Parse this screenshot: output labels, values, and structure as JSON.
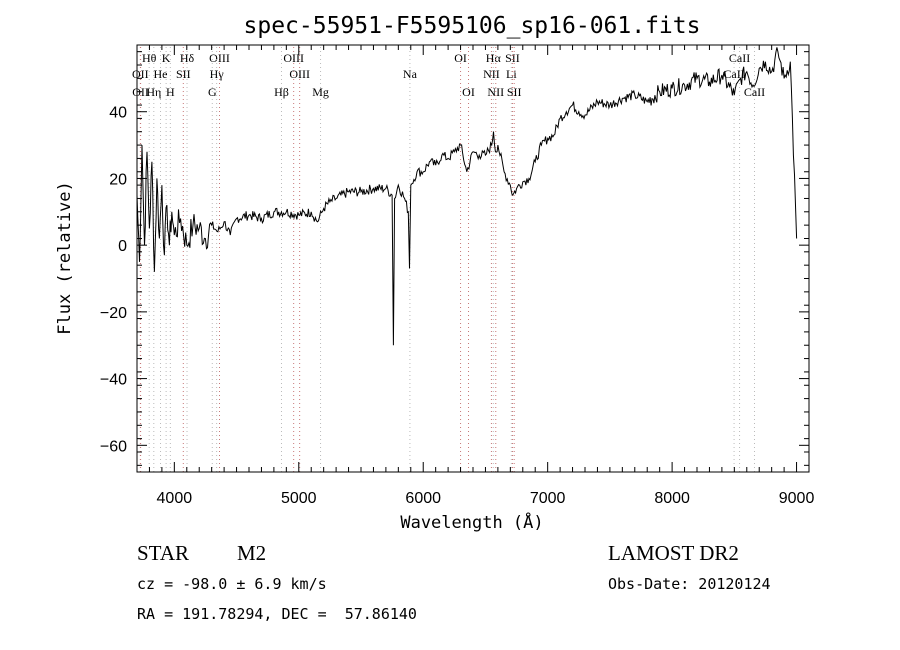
{
  "chart_data": {
    "type": "line",
    "title": "spec-55951-F5595106_sp16-061.fits",
    "xlabel": "Wavelength (Å)",
    "ylabel": "Flux (relative)",
    "xlim": [
      3700,
      9100
    ],
    "ylim": [
      -68,
      60
    ],
    "xticks": [
      4000,
      5000,
      6000,
      7000,
      8000,
      9000
    ],
    "yticks": [
      -60,
      -40,
      -20,
      0,
      20,
      40
    ],
    "grid": false,
    "series": [
      {
        "x": [
          3700,
          3720,
          3740,
          3760,
          3780,
          3800,
          3820,
          3840,
          3860,
          3880,
          3900,
          3920,
          3940,
          3960,
          3980,
          4000,
          4050,
          4100,
          4150,
          4200,
          4250,
          4300,
          4350,
          4400,
          4450,
          4500,
          4600,
          4700,
          4800,
          4900,
          5000,
          5100,
          5150,
          5200,
          5250,
          5300,
          5400,
          5500,
          5600,
          5700,
          5750,
          5760,
          5770,
          5800,
          5850,
          5880,
          5890,
          5900,
          5950,
          6000,
          6050,
          6100,
          6150,
          6200,
          6250,
          6300,
          6350,
          6400,
          6450,
          6500,
          6550,
          6565,
          6580,
          6600,
          6650,
          6700,
          6720,
          6750,
          6800,
          6850,
          6900,
          6950,
          7000,
          7050,
          7100,
          7150,
          7200,
          7250,
          7300,
          7400,
          7500,
          7600,
          7700,
          7800,
          7900,
          8000,
          8100,
          8200,
          8300,
          8400,
          8500,
          8550,
          8600,
          8650,
          8700,
          8750,
          8800,
          8850,
          8900,
          8950,
          9000
        ],
        "y": [
          15,
          -5,
          30,
          0,
          28,
          5,
          25,
          -8,
          20,
          2,
          18,
          -3,
          12,
          0,
          10,
          3,
          8,
          0,
          6,
          5,
          2,
          6,
          4,
          7,
          3,
          8,
          9,
          8,
          10,
          10,
          9,
          10,
          7,
          11,
          13,
          14,
          16,
          16,
          17,
          17,
          15,
          -30,
          14,
          18,
          14,
          10,
          -7,
          18,
          22,
          22,
          25,
          24,
          27,
          26,
          28,
          30,
          22,
          28,
          27,
          27,
          30,
          34,
          28,
          30,
          22,
          18,
          15,
          17,
          19,
          20,
          25,
          30,
          32,
          33,
          38,
          40,
          42,
          40,
          39,
          43,
          42,
          44,
          45,
          43,
          46,
          47,
          48,
          50,
          49,
          51,
          45,
          50,
          52,
          48,
          53,
          55,
          52,
          58,
          50,
          55,
          2
        ]
      }
    ],
    "spectral_lines": [
      {
        "label": "Hθ",
        "x": 3798,
        "row": 1,
        "color": "#bbbbbb"
      },
      {
        "label": "K",
        "x": 3934,
        "row": 1,
        "color": "#bbbbbb"
      },
      {
        "label": "Hδ",
        "x": 4102,
        "row": 1,
        "color": "#bbbbbb"
      },
      {
        "label": "OIII",
        "x": 4363,
        "row": 1,
        "color": "#c87878"
      },
      {
        "label": "OIII",
        "x": 4959,
        "row": 1,
        "color": "#c87878"
      },
      {
        "label": "OI",
        "x": 6300,
        "row": 1,
        "color": "#c87878"
      },
      {
        "label": "Hα",
        "x": 6563,
        "row": 1,
        "color": "#bbbbbb"
      },
      {
        "label": "SII",
        "x": 6717,
        "row": 1,
        "color": "#c87878"
      },
      {
        "label": "CaII",
        "x": 8542,
        "row": 1,
        "color": "#bbbbbb"
      },
      {
        "label": "OII",
        "x": 3727,
        "row": 2,
        "color": "#c87878"
      },
      {
        "label": "He",
        "x": 3889,
        "row": 2,
        "color": "#bbbbbb"
      },
      {
        "label": "SII",
        "x": 4072,
        "row": 2,
        "color": "#c87878"
      },
      {
        "label": "Hγ",
        "x": 4340,
        "row": 2,
        "color": "#bbbbbb"
      },
      {
        "label": "OIII",
        "x": 5007,
        "row": 2,
        "color": "#c87878"
      },
      {
        "label": "Na",
        "x": 5893,
        "row": 2,
        "color": "#bbbbbb"
      },
      {
        "label": "NII",
        "x": 6548,
        "row": 2,
        "color": "#c87878"
      },
      {
        "label": "Li",
        "x": 6708,
        "row": 2,
        "color": "#bbbbbb"
      },
      {
        "label": "CaII",
        "x": 8498,
        "row": 2,
        "color": "#bbbbbb"
      },
      {
        "label": "OII",
        "x": 3729,
        "row": 3,
        "color": "#c87878"
      },
      {
        "label": "Hη",
        "x": 3835,
        "row": 3,
        "color": "#bbbbbb"
      },
      {
        "label": "H",
        "x": 3968,
        "row": 3,
        "color": "#bbbbbb"
      },
      {
        "label": "G",
        "x": 4305,
        "row": 3,
        "color": "#bbbbbb"
      },
      {
        "label": "Hβ",
        "x": 4861,
        "row": 3,
        "color": "#bbbbbb"
      },
      {
        "label": "Mg",
        "x": 5175,
        "row": 3,
        "color": "#bbbbbb"
      },
      {
        "label": "OI",
        "x": 6364,
        "row": 3,
        "color": "#c87878"
      },
      {
        "label": "NII",
        "x": 6583,
        "row": 3,
        "color": "#c87878"
      },
      {
        "label": "SII",
        "x": 6731,
        "row": 3,
        "color": "#c87878"
      },
      {
        "label": "CaII",
        "x": 8662,
        "row": 3,
        "color": "#bbbbbb"
      }
    ]
  },
  "info": {
    "object_class": "STAR",
    "subclass": "M2",
    "survey": "LAMOST DR2",
    "cz": "cz = -98.0 ± 6.9 km/s",
    "obs_date": "Obs-Date: 20120124",
    "coords": "RA = 191.78294, DEC =  57.86140"
  }
}
